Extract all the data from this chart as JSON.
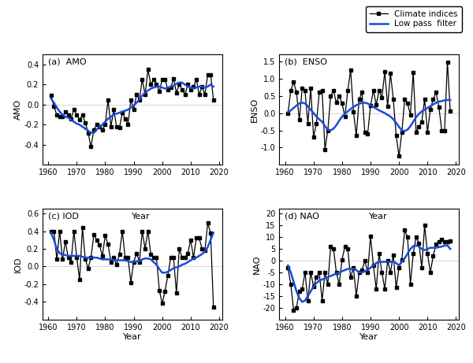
{
  "years": [
    1961,
    1962,
    1963,
    1964,
    1965,
    1966,
    1967,
    1968,
    1969,
    1970,
    1971,
    1972,
    1973,
    1974,
    1975,
    1976,
    1977,
    1978,
    1979,
    1980,
    1981,
    1982,
    1983,
    1984,
    1985,
    1986,
    1987,
    1988,
    1989,
    1990,
    1991,
    1992,
    1993,
    1994,
    1995,
    1996,
    1997,
    1998,
    1999,
    2000,
    2001,
    2002,
    2003,
    2004,
    2005,
    2006,
    2007,
    2008,
    2009,
    2010,
    2011,
    2012,
    2013,
    2014,
    2015,
    2016,
    2017,
    2018
  ],
  "AMO": [
    0.09,
    -0.02,
    -0.1,
    -0.12,
    -0.12,
    -0.07,
    -0.1,
    -0.14,
    -0.05,
    -0.1,
    -0.15,
    -0.1,
    -0.18,
    -0.28,
    -0.42,
    -0.25,
    -0.2,
    -0.22,
    -0.25,
    -0.2,
    0.05,
    -0.22,
    -0.05,
    -0.22,
    -0.23,
    -0.08,
    -0.14,
    -0.2,
    0.05,
    -0.05,
    0.1,
    0.05,
    0.25,
    0.1,
    0.35,
    0.2,
    0.25,
    0.2,
    0.13,
    0.25,
    0.25,
    0.15,
    0.17,
    0.26,
    0.12,
    0.2,
    0.15,
    0.1,
    0.2,
    0.15,
    0.18,
    0.25,
    0.1,
    0.18,
    0.1,
    0.3,
    0.3,
    0.05
  ],
  "AMO_lp": [
    0.06,
    0.02,
    -0.03,
    -0.07,
    -0.1,
    -0.12,
    -0.13,
    -0.15,
    -0.17,
    -0.19,
    -0.2,
    -0.22,
    -0.24,
    -0.26,
    -0.28,
    -0.28,
    -0.25,
    -0.22,
    -0.2,
    -0.17,
    -0.14,
    -0.12,
    -0.1,
    -0.09,
    -0.08,
    -0.07,
    -0.06,
    -0.05,
    -0.03,
    -0.01,
    0.02,
    0.05,
    0.09,
    0.12,
    0.14,
    0.16,
    0.17,
    0.18,
    0.18,
    0.17,
    0.16,
    0.17,
    0.18,
    0.19,
    0.21,
    0.22,
    0.22,
    0.2,
    0.18,
    0.17,
    0.16,
    0.17,
    0.18,
    0.18,
    0.17,
    0.18,
    0.2,
    0.18
  ],
  "ENSO": [
    0.0,
    0.65,
    0.9,
    0.6,
    -0.2,
    0.72,
    0.65,
    -0.3,
    0.72,
    -0.7,
    -0.3,
    0.6,
    0.65,
    -1.05,
    -0.5,
    0.5,
    0.65,
    0.3,
    0.5,
    0.28,
    -0.1,
    0.65,
    1.25,
    0.04,
    -0.65,
    0.4,
    0.6,
    -0.55,
    -0.6,
    0.22,
    0.65,
    0.25,
    0.65,
    0.45,
    1.2,
    0.2,
    1.15,
    0.4,
    -0.65,
    -1.25,
    -0.55,
    0.4,
    0.28,
    -0.05,
    1.18,
    -0.55,
    -0.4,
    -0.25,
    0.4,
    -0.55,
    0.1,
    0.4,
    0.6,
    0.18,
    -0.5,
    -0.5,
    1.48,
    0.05
  ],
  "ENSO_lp": [
    0.03,
    0.08,
    0.15,
    0.22,
    0.28,
    0.3,
    0.28,
    0.2,
    0.1,
    0.0,
    -0.1,
    -0.18,
    -0.25,
    -0.38,
    -0.48,
    -0.5,
    -0.45,
    -0.35,
    -0.22,
    -0.1,
    -0.02,
    0.05,
    0.12,
    0.18,
    0.23,
    0.27,
    0.3,
    0.3,
    0.28,
    0.23,
    0.18,
    0.13,
    0.08,
    0.04,
    0.0,
    -0.05,
    -0.1,
    -0.18,
    -0.28,
    -0.4,
    -0.5,
    -0.52,
    -0.48,
    -0.38,
    -0.25,
    -0.12,
    -0.02,
    0.05,
    0.1,
    0.15,
    0.2,
    0.25,
    0.3,
    0.33,
    0.35,
    0.37,
    0.38,
    0.38
  ],
  "IOD": [
    0.4,
    0.4,
    0.08,
    0.4,
    0.08,
    0.28,
    0.1,
    0.05,
    0.4,
    0.1,
    -0.15,
    0.44,
    0.08,
    -0.02,
    0.1,
    0.36,
    0.3,
    0.24,
    0.12,
    0.35,
    0.25,
    0.05,
    0.1,
    0.02,
    0.14,
    0.4,
    0.1,
    0.1,
    -0.18,
    0.05,
    0.15,
    0.05,
    0.4,
    0.2,
    0.4,
    0.14,
    0.1,
    0.1,
    -0.27,
    -0.42,
    -0.28,
    -0.1,
    0.1,
    0.1,
    -0.3,
    0.2,
    0.1,
    0.1,
    0.15,
    0.3,
    0.1,
    0.32,
    0.32,
    0.2,
    0.18,
    0.49,
    0.38,
    -0.46
  ],
  "IOD_lp": [
    0.38,
    0.3,
    0.2,
    0.15,
    0.13,
    0.13,
    0.12,
    0.12,
    0.12,
    0.12,
    0.12,
    0.11,
    0.1,
    0.1,
    0.1,
    0.1,
    0.1,
    0.09,
    0.08,
    0.08,
    0.08,
    0.08,
    0.07,
    0.07,
    0.07,
    0.07,
    0.07,
    0.06,
    0.05,
    0.05,
    0.06,
    0.06,
    0.08,
    0.09,
    0.09,
    0.08,
    0.05,
    0.02,
    -0.03,
    -0.07,
    -0.07,
    -0.06,
    -0.04,
    -0.02,
    -0.01,
    0.0,
    0.02,
    0.03,
    0.05,
    0.07,
    0.09,
    0.1,
    0.12,
    0.14,
    0.17,
    0.22,
    0.3,
    0.38
  ],
  "NAO": [
    -3.0,
    -10.0,
    -21.0,
    -20.0,
    -13.0,
    -12.0,
    -5.0,
    -17.0,
    -5.0,
    -11.0,
    -7.0,
    -5.0,
    -17.0,
    -5.0,
    -10.0,
    6.0,
    5.0,
    -5.0,
    -10.0,
    0.5,
    6.0,
    5.0,
    -7.0,
    -3.0,
    -15.0,
    -5.0,
    -4.0,
    0.0,
    -5.0,
    10.5,
    -2.0,
    -12.0,
    3.0,
    -5.0,
    -12.0,
    0.0,
    -5.0,
    2.5,
    -11.5,
    -3.0,
    0.5,
    13.0,
    10.0,
    -10.0,
    3.0,
    10.0,
    7.5,
    -3.0,
    15.0,
    3.0,
    -5.0,
    2.0,
    7.0,
    8.0,
    9.0,
    8.0,
    8.0,
    8.5
  ],
  "NAO_lp": [
    -2.0,
    -5.0,
    -9.0,
    -13.0,
    -16.0,
    -17.5,
    -17.0,
    -15.0,
    -13.0,
    -11.0,
    -9.5,
    -8.5,
    -8.0,
    -7.5,
    -7.0,
    -6.5,
    -6.0,
    -5.5,
    -5.0,
    -4.5,
    -4.0,
    -3.5,
    -3.5,
    -3.5,
    -4.0,
    -5.0,
    -5.0,
    -4.5,
    -4.0,
    -3.0,
    -2.0,
    -1.0,
    -0.5,
    -0.5,
    -0.5,
    -0.5,
    -0.5,
    -0.5,
    -1.0,
    -2.0,
    -0.5,
    1.0,
    3.0,
    5.0,
    6.2,
    6.5,
    6.0,
    5.0,
    4.5,
    5.0,
    5.5,
    5.5,
    5.5,
    5.8,
    6.0,
    6.5,
    6.5,
    5.0
  ],
  "line_color": "#000000",
  "filter_color": "#1a4adb",
  "marker": "s",
  "markersize": 3.5,
  "linewidth": 0.9,
  "filter_linewidth": 1.8,
  "xlim": [
    1958,
    2021
  ],
  "xticks": [
    1960,
    1970,
    1980,
    1990,
    2000,
    2010,
    2020
  ],
  "AMO_ylim": [
    -0.6,
    0.5
  ],
  "AMO_yticks": [
    -0.4,
    -0.2,
    0.0,
    0.2,
    0.4
  ],
  "ENSO_ylim": [
    -1.5,
    1.7
  ],
  "ENSO_yticks": [
    -1.0,
    -0.5,
    0.0,
    0.5,
    1.0,
    1.5
  ],
  "IOD_ylim": [
    -0.6,
    0.65
  ],
  "IOD_yticks": [
    -0.4,
    -0.2,
    0.0,
    0.2,
    0.4,
    0.6
  ],
  "NAO_ylim": [
    -25,
    22
  ],
  "NAO_yticks": [
    -20,
    -15,
    -10,
    -5,
    0,
    5,
    10,
    15,
    20
  ],
  "legend_labels": [
    "Climate indices",
    "Low pass  filter"
  ],
  "panel_labels": [
    "(a)  AMO",
    "(b)  ENSO",
    "(c) IOD",
    "(d) NAO"
  ]
}
